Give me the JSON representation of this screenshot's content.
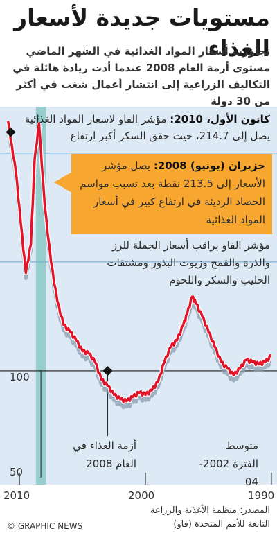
{
  "title": "مستويات جديدة لأسعار الغذاء",
  "subtitle": "تجاوزت أسعار المواد الغذائية في الشهر الماضي مستوى أزمة العام 2008 عندما أدت زيادة هائلة في التكاليف الزراعية إلى انتشار أعمال شغب في أكثر من 30 دولة",
  "notes": {
    "dec2010_bold": "كانون الأول، 2010:",
    "dec2010_text": " مؤشر الفاو لاسعار المواد الغذائية يصل إلى 214.7، حيث حقق السكر أكبر ارتفاع",
    "june2008_bold": "حزيران (يونيو) 2008:",
    "june2008_text": " يصل مؤشر الأسعار إلى 213.5 نقطة بعد تسبب مواسم الحصاد الرديئة في ارتفاع كبير في أسعار المواد الغذائية",
    "index_desc": "مؤشر الفاو يراقب أسعار الجملة للرز والذرة والقمح وزيوت البذور ومشتقات الحليب والسكر واللحوم",
    "crisis_label": "أزمة الغذاء في العام 2008",
    "avg_label": "متوسط الفترة 2002-04"
  },
  "footer": {
    "credit": "© GRAPHIC NEWS",
    "source_line1": "المصدر: منظمة الأغذية والزراعة",
    "source_line2": "التابعة للأمم المتحدة (فاو)"
  },
  "colors": {
    "line": "#e3132a",
    "shadow": "#8a9db0",
    "background": "#dde9f4",
    "gridline": "#66a7d8",
    "crisis_band": "#8fcbc9",
    "callout": "#f7a630"
  },
  "chart_data": {
    "type": "line",
    "title": "",
    "xlabel": "",
    "ylabel": "",
    "x_direction": "reversed",
    "xlim": [
      1990,
      2011
    ],
    "ylim": [
      50,
      220
    ],
    "x_ticks": [
      "2010",
      "2000",
      "1990"
    ],
    "y_ticks": [
      "100",
      "50"
    ],
    "reference_line": {
      "value": 100,
      "label": "100"
    },
    "highlight_band": {
      "from": 2007.9,
      "to": 2008.7
    },
    "series": [
      {
        "values": [
          [
            1990.0,
            107
          ],
          [
            1990.5,
            104
          ],
          [
            1991.0,
            103
          ],
          [
            1991.5,
            104
          ],
          [
            1992.0,
            105
          ],
          [
            1992.5,
            101
          ],
          [
            1993.0,
            98
          ],
          [
            1993.5,
            101
          ],
          [
            1994.0,
            104
          ],
          [
            1994.5,
            111
          ],
          [
            1995.0,
            118
          ],
          [
            1995.5,
            125
          ],
          [
            1996.0,
            131
          ],
          [
            1996.3,
            134
          ],
          [
            1996.7,
            126
          ],
          [
            1997.0,
            121
          ],
          [
            1997.5,
            114
          ],
          [
            1998.0,
            111
          ],
          [
            1998.5,
            104
          ],
          [
            1999.0,
            95
          ],
          [
            1999.5,
            91
          ],
          [
            2000.0,
            89
          ],
          [
            2000.5,
            90
          ],
          [
            2001.0,
            88
          ],
          [
            2001.5,
            86
          ],
          [
            2002.0,
            87
          ],
          [
            2002.5,
            89
          ],
          [
            2003.0,
            93
          ],
          [
            2003.5,
            96
          ],
          [
            2004.0,
            104
          ],
          [
            2004.5,
            108
          ],
          [
            2005.0,
            109
          ],
          [
            2005.5,
            114
          ],
          [
            2006.0,
            118
          ],
          [
            2006.5,
            121
          ],
          [
            2007.0,
            132
          ],
          [
            2007.5,
            150
          ],
          [
            2008.0,
            176
          ],
          [
            2008.45,
            213.5
          ],
          [
            2008.8,
            197
          ],
          [
            2009.1,
            158
          ],
          [
            2009.5,
            145
          ],
          [
            2009.9,
            168
          ],
          [
            2010.3,
            192
          ],
          [
            2010.7,
            206
          ],
          [
            2010.92,
            214.7
          ]
        ]
      }
    ]
  }
}
